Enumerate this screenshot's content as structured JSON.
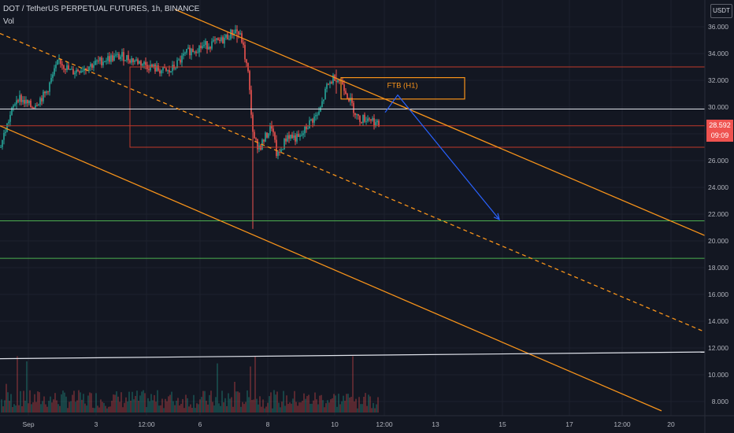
{
  "header": {
    "title": "DOT / TetherUS PERPETUAL FUTURES, 1h, BINANCE",
    "volume_label": "Vol",
    "currency_badge": "USDT"
  },
  "price_tag": {
    "price": "28.592",
    "countdown": "09:09",
    "color": "#ef5350"
  },
  "annotation": {
    "label": "FTB (H1)"
  },
  "colors": {
    "background": "#131722",
    "grid": "#1e222d",
    "up": "#26a69a",
    "down": "#ef5350",
    "orange": "#f7931a",
    "red_line": "#c0392b",
    "green_line": "#4caf50",
    "white_line": "#e0e3eb",
    "arrow": "#2962ff"
  },
  "chart_data": {
    "type": "candlestick",
    "symbol": "DOT / TetherUS PERPETUAL FUTURES",
    "timeframe": "1h",
    "exchange": "BINANCE",
    "y_axis": {
      "ticks": [
        "36.000",
        "34.000",
        "32.000",
        "30.000",
        "28.000",
        "26.000",
        "24.000",
        "22.000",
        "20.000",
        "18.000",
        "16.000",
        "14.000",
        "12.000",
        "10.000",
        "8.000"
      ],
      "range": [
        7.4,
        37.0
      ]
    },
    "x_axis": {
      "ticks": [
        "Sep",
        "3",
        "12:00",
        "6",
        "8",
        "10",
        "12:00",
        "13",
        "15",
        "17",
        "12:00",
        "20"
      ]
    },
    "last_price": 28.592,
    "ohlc_anchors": [
      {
        "x": 0,
        "p": 27.0
      },
      {
        "x": 12,
        "p": 29.2
      },
      {
        "x": 22,
        "p": 30.8
      },
      {
        "x": 40,
        "p": 30.0
      },
      {
        "x": 58,
        "p": 31.0
      },
      {
        "x": 75,
        "p": 33.5
      },
      {
        "x": 90,
        "p": 32.6
      },
      {
        "x": 110,
        "p": 33.0
      },
      {
        "x": 135,
        "p": 33.6
      },
      {
        "x": 155,
        "p": 33.8
      },
      {
        "x": 175,
        "p": 33.4
      },
      {
        "x": 200,
        "p": 32.8
      },
      {
        "x": 215,
        "p": 32.6
      },
      {
        "x": 240,
        "p": 34.2
      },
      {
        "x": 260,
        "p": 34.6
      },
      {
        "x": 280,
        "p": 34.9
      },
      {
        "x": 300,
        "p": 35.8
      },
      {
        "x": 307,
        "p": 35.0
      },
      {
        "x": 315,
        "p": 32.5
      },
      {
        "x": 322,
        "p": 27.5
      },
      {
        "x": 330,
        "p": 27.0
      },
      {
        "x": 345,
        "p": 28.6
      },
      {
        "x": 352,
        "p": 26.2
      },
      {
        "x": 365,
        "p": 27.9
      },
      {
        "x": 380,
        "p": 27.6
      },
      {
        "x": 395,
        "p": 29.0
      },
      {
        "x": 405,
        "p": 29.5
      },
      {
        "x": 415,
        "p": 31.5
      },
      {
        "x": 425,
        "p": 32.3
      },
      {
        "x": 435,
        "p": 31.8
      },
      {
        "x": 445,
        "p": 30.4
      },
      {
        "x": 455,
        "p": 29.1
      },
      {
        "x": 470,
        "p": 29.2
      },
      {
        "x": 480,
        "p": 28.6
      }
    ],
    "wick_extremes": [
      {
        "x": 321,
        "low": 20.9,
        "high": 29.3
      },
      {
        "x": 301,
        "low": 34.8,
        "high": 36.1
      },
      {
        "x": 427,
        "low": 31.0,
        "high": 32.8
      }
    ],
    "volume_spikes": [
      {
        "x": 321,
        "v": 1.0
      },
      {
        "x": 448,
        "v": 0.55
      },
      {
        "x": 22,
        "v": 0.55
      },
      {
        "x": 324,
        "v": 0.55
      },
      {
        "x": 318,
        "v": 0.45
      },
      {
        "x": 276,
        "v": 0.48
      },
      {
        "x": 34,
        "v": 0.5
      },
      {
        "x": 8,
        "v": 0.28
      },
      {
        "x": 403,
        "v": 0.3
      },
      {
        "x": 298,
        "v": 0.3
      }
    ],
    "drawings": {
      "horizontal_levels": [
        {
          "price": 29.85,
          "color": "white_line"
        },
        {
          "price": 28.6,
          "color": "red_line"
        },
        {
          "price": 21.5,
          "color": "green_line"
        },
        {
          "price": 18.7,
          "color": "green_line"
        }
      ],
      "zone_rect": {
        "top": 33.0,
        "bottom": 27.0
      },
      "ftb_box": {
        "top": 32.2,
        "bottom": 30.6
      },
      "channel_lines": [
        {
          "from": [
            222,
            37.3
          ],
          "to": [
            895,
            20.4
          ],
          "style": "solid"
        },
        {
          "from": [
            0,
            35.5
          ],
          "to": [
            895,
            13.2
          ],
          "style": "dashed"
        },
        {
          "from": [
            0,
            28.6
          ],
          "to": [
            840,
            7.3
          ],
          "style": "solid"
        }
      ],
      "support_diagonal": {
        "from": [
          0,
          11.2
        ],
        "to": [
          895,
          11.7
        ]
      },
      "projection_arrow": [
        [
          489,
          29.6
        ],
        [
          505,
          30.9
        ],
        [
          634,
          21.6
        ]
      ]
    }
  }
}
